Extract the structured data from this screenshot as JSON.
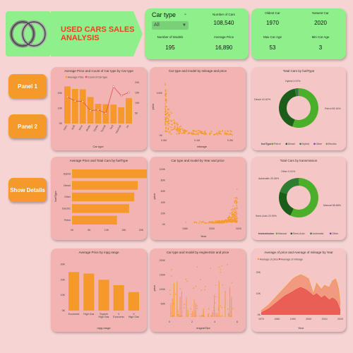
{
  "header": {
    "title_line1": "USED CARS SALES",
    "title_line2": "ANALYSIS",
    "car_type_label": "Car type",
    "car_type_value": "All",
    "kpis": [
      {
        "label": "Number of Cars",
        "value": "108,540"
      },
      {
        "label": "Number of Models",
        "value": "195"
      },
      {
        "label": "Average Price",
        "value": "16,890"
      }
    ],
    "age_kpis": [
      {
        "label": "Oldest Car",
        "value": "1970"
      },
      {
        "label": "Newest Car",
        "value": "2020"
      },
      {
        "label": "Max Car Age",
        "value": "53"
      },
      {
        "label": "Min Car Age",
        "value": "3"
      }
    ]
  },
  "nav": {
    "panel1": "Panel 1",
    "panel2": "Panel 2",
    "show_details": "Show Details"
  },
  "colors": {
    "orange": "#f59a2a",
    "red": "#e84a4a",
    "green": "#8ef08a",
    "dark_green": "#1a5e1a",
    "green2": "#4caf2a",
    "green3": "#2e7d32",
    "purple": "#7b3fc0"
  },
  "chart_data": [
    {
      "type": "bar",
      "title": "Average Price and Count of Car type by Car type",
      "xlabel": "Car type",
      "categories": [
        "merc",
        "audi",
        "bmw",
        "skoda",
        "toyota",
        "hyundi",
        "ford",
        "vauxhall",
        "vw"
      ],
      "series": [
        {
          "name": "Average Price",
          "values": [
            24500,
            22800,
            22600,
            17500,
            13000,
            12800,
            12500,
            10700,
            16800
          ]
        },
        {
          "name": "Count of Car type",
          "values": [
            13000,
            11000,
            10800,
            6300,
            6700,
            5000,
            18000,
            13600,
            15200
          ]
        }
      ],
      "y_ticks": [
        "0K",
        "10K",
        "20K"
      ],
      "y2_ticks": [
        "5K",
        "10K",
        "15K",
        "20K"
      ],
      "legend": "top-left"
    },
    {
      "type": "scatter",
      "title": "Car type and model by mileage and price",
      "xlabel": "mileage",
      "ylabel": "price",
      "x_ticks": [
        "0.0M",
        "0.1M",
        "0.2M"
      ],
      "y_ticks": [
        "0K",
        "100K"
      ]
    },
    {
      "type": "pie",
      "title": "Total Cars by fuelType",
      "legend_title": "fuelType",
      "slices": [
        {
          "name": "Petrol",
          "value": 55.16,
          "label": "Petrol 55.16%"
        },
        {
          "name": "Diesel",
          "value": 41.62,
          "label": "Diesel 41.62%"
        },
        {
          "name": "Hybrid",
          "value": 2.97,
          "label": "Hybrid 2.97%"
        },
        {
          "name": "Other",
          "value": 0.2,
          "label": ""
        },
        {
          "name": "Electric",
          "value": 0.05,
          "label": ""
        }
      ]
    },
    {
      "type": "bar",
      "title": "Average Price and Total Cars by fuelType",
      "ylabel": "fuelType",
      "categories": [
        "Hybrid",
        "Diesel",
        "Other",
        "Electric",
        "Petrol"
      ],
      "values": [
        24000,
        19000,
        18000,
        16500,
        13000
      ],
      "x_ticks": [
        "0K",
        "5K",
        "10K",
        "15K",
        "20K"
      ]
    },
    {
      "type": "scatter",
      "title": "Car type and model by Year and price",
      "xlabel": "Year",
      "ylabel": "price",
      "x_ticks": [
        "1980",
        "2000",
        "2020"
      ],
      "y_ticks": [
        "0K",
        "20K",
        "40K",
        "60K",
        "80K",
        "100K"
      ]
    },
    {
      "type": "pie",
      "title": "Total Cars by transmission",
      "legend_title": "transmission",
      "slices": [
        {
          "name": "Manual",
          "value": 56.68,
          "label": "Manual 56.68%"
        },
        {
          "name": "Semi-Auto",
          "value": 22.9,
          "label": "Semi-Auto 22.90%"
        },
        {
          "name": "Automatic",
          "value": 20.06,
          "label": "Automatic 20.06%"
        },
        {
          "name": "Other",
          "value": 0.01,
          "label": "Other 0.01%"
        }
      ]
    },
    {
      "type": "bar",
      "title": "Average Price by mpg range",
      "xlabel": "mpg range",
      "categories": [
        "Economic",
        "High Gas",
        "Superb High Gas",
        "V Economic",
        "V High Gas"
      ],
      "values": [
        25000,
        24000,
        20000,
        16500,
        12000
      ],
      "y_ticks": [
        "0K",
        "10K",
        "20K",
        "30K"
      ]
    },
    {
      "type": "scatter",
      "title": "Car type and model by engineSize and price",
      "xlabel": "engineSize",
      "ylabel": "price",
      "x_ticks": [
        "0",
        "2",
        "4",
        "6"
      ],
      "y_ticks": [
        "50K",
        "100K",
        "150K",
        "200K"
      ]
    },
    {
      "type": "area",
      "title": "Average of price and Average of mileage by Year",
      "xlabel": "Year",
      "series_names": [
        "Average of price",
        "Average of mileage"
      ],
      "x": [
        1970,
        1975,
        1980,
        1985,
        1990,
        1992,
        1995,
        1998,
        2000,
        2003,
        2005,
        2008,
        2010,
        2013,
        2015,
        2017,
        2018,
        2019,
        2020
      ],
      "values_price": [
        2000,
        5000,
        9000,
        13000,
        17000,
        18000,
        19000,
        18000,
        17000,
        10000,
        15000,
        12000,
        14000,
        13000,
        16000,
        17000,
        15000,
        12000,
        5000
      ],
      "values_mileage": [
        1000,
        3000,
        6000,
        9000,
        11000,
        12000,
        13000,
        12000,
        11000,
        9000,
        10000,
        8000,
        9000,
        7000,
        8000,
        7000,
        6000,
        4000,
        2000
      ],
      "x_ticks": [
        "1970",
        "1980",
        "1990",
        "2000",
        "2010",
        "2020"
      ],
      "y_ticks": [
        "0K",
        "10K",
        "20K"
      ]
    }
  ]
}
